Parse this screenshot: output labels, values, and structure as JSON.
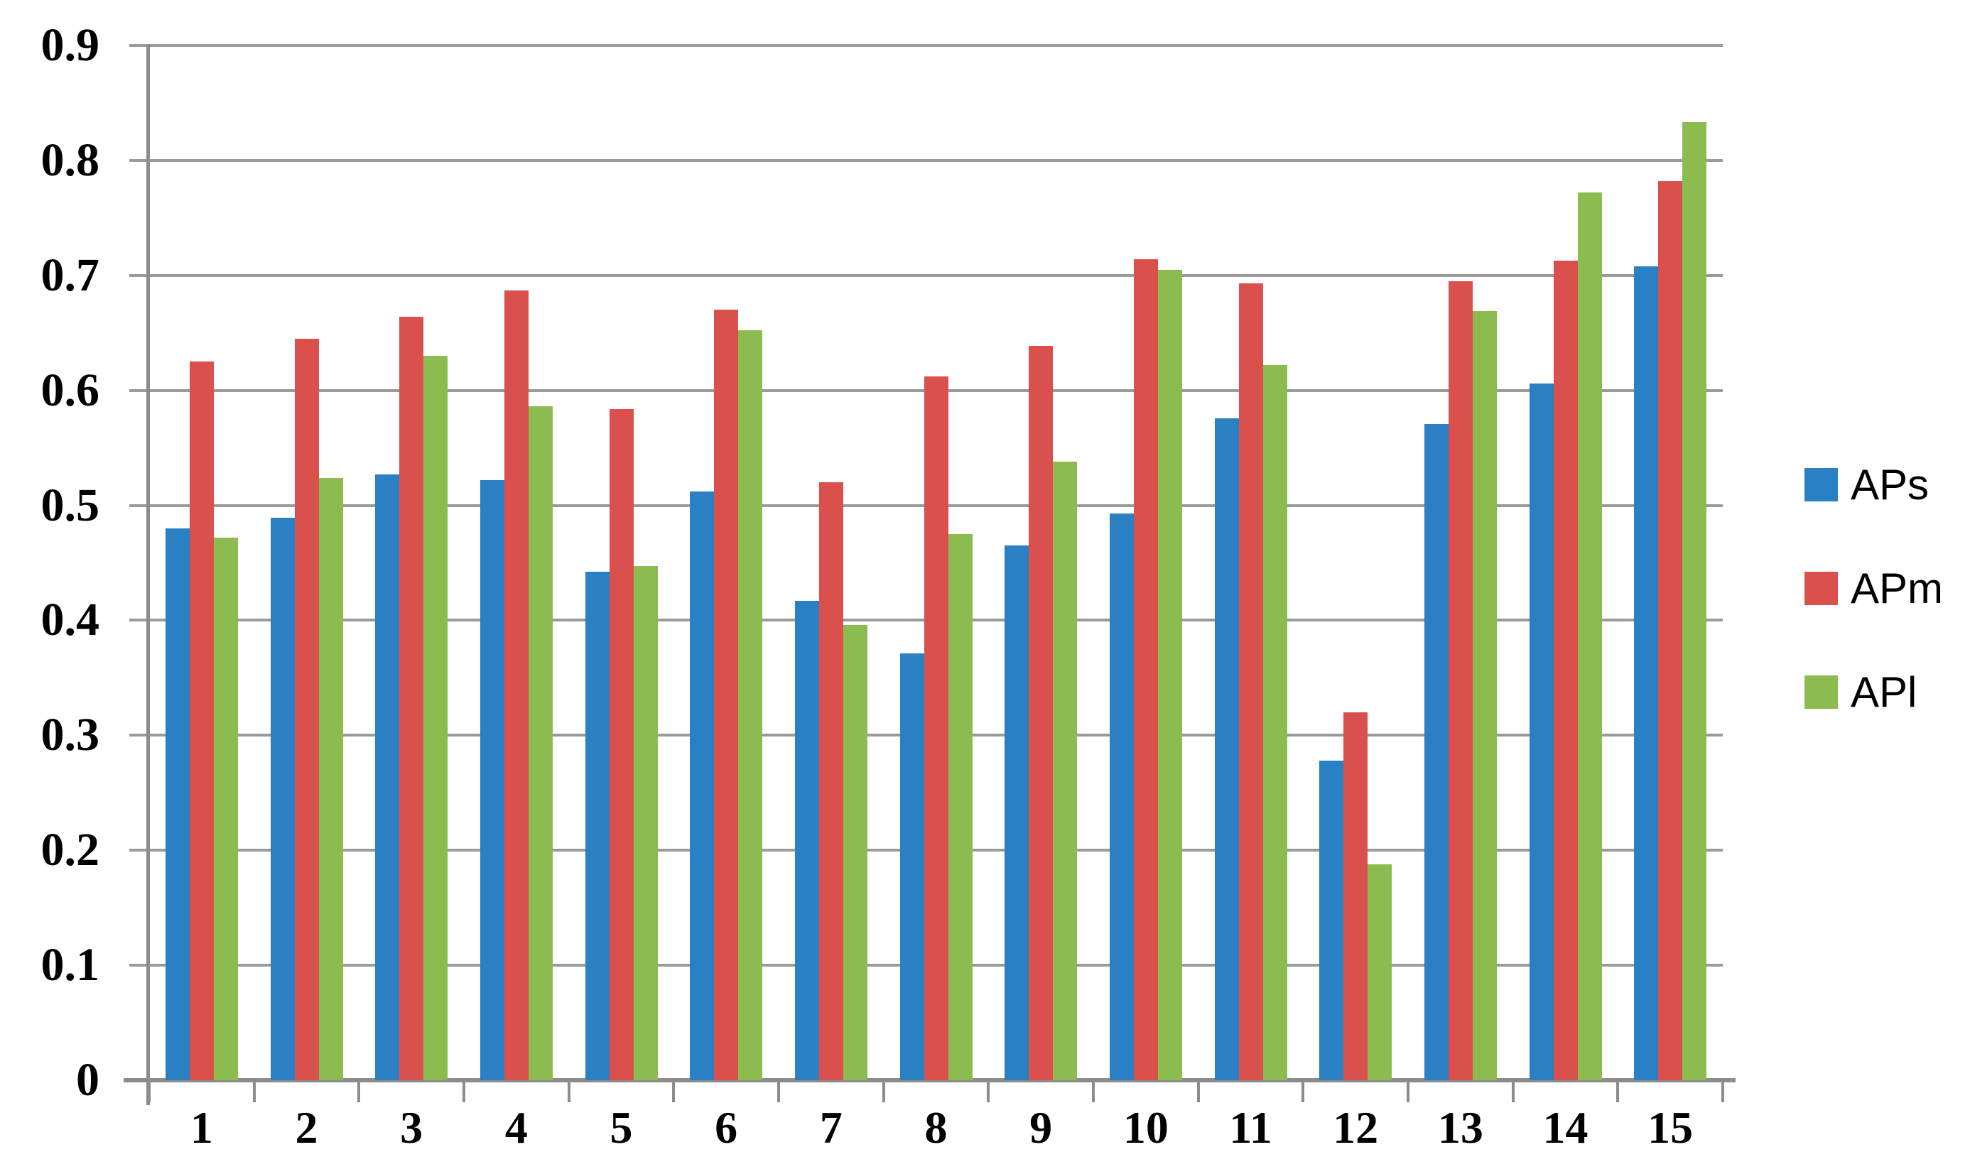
{
  "chart_data": {
    "type": "bar",
    "title": "",
    "xlabel": "",
    "ylabel": "",
    "categories": [
      "1",
      "2",
      "3",
      "4",
      "5",
      "6",
      "7",
      "8",
      "9",
      "10",
      "11",
      "12",
      "13",
      "14",
      "15"
    ],
    "series": [
      {
        "name": "APs",
        "color": "#2b80c3",
        "values": [
          0.48,
          0.489,
          0.527,
          0.522,
          0.442,
          0.512,
          0.417,
          0.371,
          0.465,
          0.493,
          0.576,
          0.278,
          0.571,
          0.606,
          0.708
        ]
      },
      {
        "name": "APm",
        "color": "#d9504d",
        "values": [
          0.625,
          0.645,
          0.664,
          0.687,
          0.584,
          0.67,
          0.52,
          0.612,
          0.639,
          0.714,
          0.693,
          0.32,
          0.695,
          0.713,
          0.782
        ]
      },
      {
        "name": "APl",
        "color": "#8cbb4f",
        "values": [
          0.472,
          0.524,
          0.63,
          0.586,
          0.447,
          0.652,
          0.396,
          0.475,
          0.538,
          0.705,
          0.622,
          0.188,
          0.669,
          0.772,
          0.833
        ]
      }
    ],
    "ylim": [
      0,
      0.9
    ],
    "yticks": [
      "0",
      "0.1",
      "0.2",
      "0.3",
      "0.4",
      "0.5",
      "0.6",
      "0.7",
      "0.8",
      "0.9"
    ],
    "grid": true,
    "legend_position": "right",
    "colors": {
      "gridline": "#9a9a9a",
      "axis": "#8c8c8c",
      "tick_label": "#000000",
      "background": "#ffffff"
    }
  }
}
